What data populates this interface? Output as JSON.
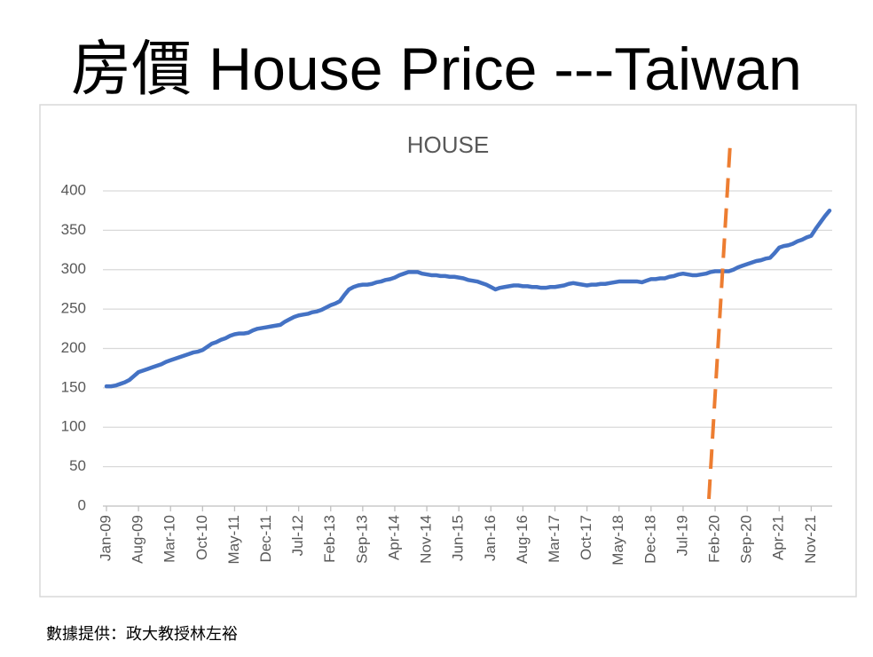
{
  "title": "房價 House Price ---Taiwan",
  "source": "數據提供：政大教授林左裕",
  "chart_data": {
    "type": "line",
    "title": "HOUSE",
    "color": "#4472c4",
    "grid": true,
    "ylim": [
      0,
      400
    ],
    "yticks": [
      0,
      50,
      100,
      150,
      200,
      250,
      300,
      350,
      400
    ],
    "categories": [
      "Jan-09",
      null,
      null,
      null,
      null,
      null,
      null,
      "Aug-09",
      null,
      null,
      null,
      null,
      null,
      null,
      "Mar-10",
      null,
      null,
      null,
      null,
      null,
      null,
      "Oct-10",
      null,
      null,
      null,
      null,
      null,
      null,
      "May-11",
      null,
      null,
      null,
      null,
      null,
      null,
      "Dec-11",
      null,
      null,
      null,
      null,
      null,
      null,
      "Jul-12",
      null,
      null,
      null,
      null,
      null,
      null,
      "Feb-13",
      null,
      null,
      null,
      null,
      null,
      null,
      "Sep-13",
      null,
      null,
      null,
      null,
      null,
      null,
      "Apr-14",
      null,
      null,
      null,
      null,
      null,
      null,
      "Nov-14",
      null,
      null,
      null,
      null,
      null,
      null,
      "Jun-15",
      null,
      null,
      null,
      null,
      null,
      null,
      "Jan-16",
      null,
      null,
      null,
      null,
      null,
      null,
      "Aug-16",
      null,
      null,
      null,
      null,
      null,
      null,
      "Mar-17",
      null,
      null,
      null,
      null,
      null,
      null,
      "Oct-17",
      null,
      null,
      null,
      null,
      null,
      null,
      "May-18",
      null,
      null,
      null,
      null,
      null,
      null,
      "Dec-18",
      null,
      null,
      null,
      null,
      null,
      null,
      "Jul-19",
      null,
      null,
      null,
      null,
      null,
      null,
      "Feb-20",
      null,
      null,
      null,
      null,
      null,
      null,
      "Sep-20",
      null,
      null,
      null,
      null,
      null,
      null,
      "Apr-21",
      null,
      null,
      null,
      null,
      null,
      null,
      "Nov-21",
      null,
      null,
      null,
      null
    ],
    "values": [
      152,
      152,
      153,
      155,
      157,
      160,
      165,
      170,
      172,
      174,
      176,
      178,
      180,
      183,
      185,
      187,
      189,
      191,
      193,
      195,
      196,
      198,
      202,
      206,
      208,
      211,
      213,
      216,
      218,
      219,
      219,
      220,
      223,
      225,
      226,
      227,
      228,
      229,
      230,
      234,
      237,
      240,
      242,
      243,
      244,
      246,
      247,
      249,
      252,
      255,
      257,
      260,
      268,
      275,
      278,
      280,
      281,
      281,
      282,
      284,
      285,
      287,
      288,
      290,
      293,
      295,
      297,
      297,
      297,
      295,
      294,
      293,
      293,
      292,
      292,
      291,
      291,
      290,
      289,
      287,
      286,
      285,
      283,
      281,
      278,
      275,
      277,
      278,
      279,
      280,
      280,
      279,
      279,
      278,
      278,
      277,
      277,
      278,
      278,
      279,
      280,
      282,
      283,
      282,
      281,
      280,
      281,
      281,
      282,
      282,
      283,
      284,
      285,
      285,
      285,
      285,
      285,
      284,
      286,
      288,
      288,
      289,
      289,
      291,
      292,
      294,
      295,
      294,
      293,
      293,
      294,
      295,
      297,
      298,
      298,
      298,
      298,
      300,
      303,
      305,
      307,
      309,
      311,
      312,
      314,
      315,
      321,
      328,
      330,
      331,
      333,
      336,
      338,
      341,
      343,
      352,
      360,
      368,
      375
    ]
  }
}
